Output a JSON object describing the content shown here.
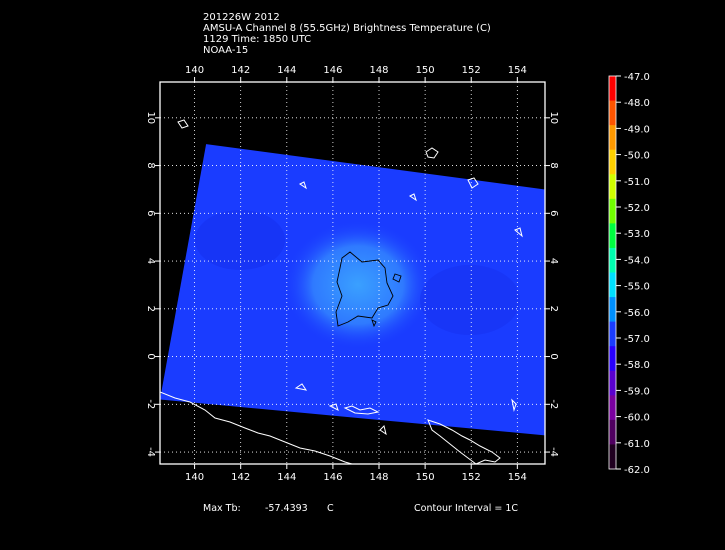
{
  "header": {
    "line1": "201226W 2012",
    "line2": "AMSU-A Channel 8 (55.5GHz) Brightness Temperature (C)",
    "line3": "1129 Time: 1850 UTC",
    "line4": "NOAA-15"
  },
  "map": {
    "lon_labels": [
      "140",
      "142",
      "144",
      "146",
      "148",
      "150",
      "152",
      "154"
    ],
    "lat_labels": [
      "10",
      "8",
      "6",
      "4",
      "2",
      "0",
      "-2",
      "-4"
    ],
    "lon_range": [
      138.5,
      155.2
    ],
    "lat_range": [
      -4.5,
      11.5
    ],
    "swath_corners_lonlat": [
      [
        140.5,
        8.9
      ],
      [
        155.2,
        7.0
      ],
      [
        155.2,
        -3.3
      ],
      [
        138.5,
        -1.8
      ]
    ],
    "swath_color": "#1a3cff",
    "core_color": "#3aa0ff",
    "grid": "dotted white"
  },
  "colorbar": {
    "labels": [
      "-47.0",
      "-48.0",
      "-49.0",
      "-50.0",
      "-51.0",
      "-52.0",
      "-53.0",
      "-54.0",
      "-55.0",
      "-56.0",
      "-57.0",
      "-58.0",
      "-59.0",
      "-60.0",
      "-61.0",
      "-62.0"
    ],
    "colors": [
      "#ff0000",
      "#ff5500",
      "#ff9900",
      "#ffd000",
      "#d0ff00",
      "#70ff00",
      "#00ff40",
      "#00ffb0",
      "#00e0ff",
      "#0090ff",
      "#1a3cff",
      "#2800ff",
      "#5a00d0",
      "#7a00a0",
      "#500060",
      "#200020"
    ]
  },
  "footer": {
    "max_tb_label": "Max Tb:",
    "max_tb_value": "-57.4393",
    "max_tb_unit": "C",
    "contour": "Contour Interval = 1C"
  }
}
